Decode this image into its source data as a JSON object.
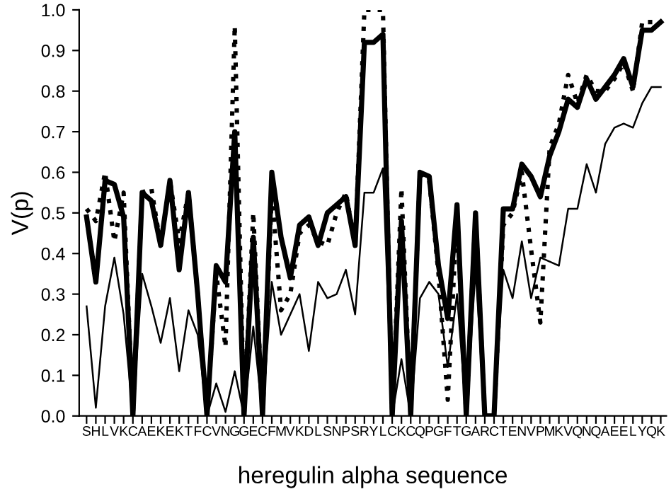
{
  "chart_data": {
    "type": "line",
    "xlabel": "heregulin alpha sequence",
    "ylabel": "V(p)",
    "categories": [
      "S",
      "H",
      "L",
      "V",
      "K",
      "C",
      "A",
      "E",
      "K",
      "E",
      "K",
      "T",
      "F",
      "C",
      "V",
      "N",
      "G",
      "G",
      "E",
      "C",
      "F",
      "M",
      "V",
      "K",
      "D",
      "L",
      "S",
      "N",
      "P",
      "S",
      "R",
      "Y",
      "L",
      "C",
      "K",
      "C",
      "Q",
      "P",
      "G",
      "F",
      "T",
      "G",
      "A",
      "R",
      "C",
      "T",
      "E",
      "N",
      "V",
      "P",
      "M",
      "K",
      "V",
      "Q",
      "N",
      "Q",
      "A",
      "E",
      "E",
      "L",
      "Y",
      "Q",
      "K"
    ],
    "ylim": [
      0,
      1
    ],
    "yticks": [
      {
        "value": 0,
        "label": "0.0"
      },
      {
        "value": 0.1,
        "label": "0.1"
      },
      {
        "value": 0.2,
        "label": "0.2"
      },
      {
        "value": 0.3,
        "label": "0.3"
      },
      {
        "value": 0.4,
        "label": "0.4"
      },
      {
        "value": 0.5,
        "label": "0.5"
      },
      {
        "value": 0.6,
        "label": "0.6"
      },
      {
        "value": 0.7,
        "label": "0.7"
      },
      {
        "value": 0.8,
        "label": "0.8"
      },
      {
        "value": 0.9,
        "label": "0.9"
      },
      {
        "value": 1,
        "label": "1.0"
      }
    ],
    "grid": false,
    "legend": false,
    "marker": "none",
    "series": [
      {
        "color": "#000000",
        "line_style": "solid",
        "values": [
          0.49,
          0.33,
          0.58,
          0.57,
          0.49,
          0,
          0.55,
          0.53,
          0.42,
          0.58,
          0.36,
          0.55,
          0.3,
          0,
          0.37,
          0.33,
          0.7,
          0,
          0.44,
          0,
          0.6,
          0.44,
          0.34,
          0.47,
          0.49,
          0.42,
          0.5,
          0.52,
          0.54,
          0.42,
          0.92,
          0.92,
          0.94,
          0,
          0.48,
          0,
          0.6,
          0.59,
          0.37,
          0.24,
          0.52,
          0,
          0.5,
          0,
          0,
          0.51,
          0.51,
          0.62,
          0.59,
          0.54,
          0.64,
          0.7,
          0.78,
          0.76,
          0.83,
          0.78,
          0.81,
          0.84,
          0.88,
          0.81,
          0.95,
          0.95,
          0.97
        ]
      },
      {
        "color": "#000000",
        "line_style": "dotted",
        "values": [
          0.51,
          0.48,
          0.6,
          0.43,
          0.55,
          0,
          0.55,
          0.56,
          0.42,
          0.58,
          0.43,
          0.55,
          0.3,
          0,
          0.35,
          0.17,
          0.96,
          0,
          0.5,
          0,
          0.55,
          0.26,
          0.3,
          0.45,
          0.47,
          0.43,
          0.42,
          0.5,
          0.55,
          0.42,
          1,
          1,
          1,
          0,
          0.56,
          0,
          0.6,
          0.58,
          0.35,
          0.04,
          0.5,
          0,
          0.5,
          0,
          0,
          0.47,
          0.5,
          0.6,
          0.41,
          0.23,
          0.66,
          0.72,
          0.84,
          0.77,
          0.84,
          0.8,
          0.8,
          0.83,
          0.87,
          0.8,
          0.97,
          0.97,
          0.97
        ]
      },
      {
        "color": "#000000",
        "line_style": "solid",
        "values": [
          0.27,
          0.02,
          0.27,
          0.39,
          0.25,
          0,
          0.35,
          0.27,
          0.18,
          0.29,
          0.11,
          0.26,
          0.2,
          0,
          0.08,
          0.01,
          0.11,
          0,
          0.22,
          0,
          0.33,
          0.2,
          0.25,
          0.3,
          0.16,
          0.33,
          0.29,
          0.3,
          0.36,
          0.25,
          0.55,
          0.55,
          0.61,
          0,
          0.14,
          0,
          0.29,
          0.33,
          0.3,
          0.12,
          0.3,
          0,
          0.36,
          0,
          0,
          0.36,
          0.29,
          0.43,
          0.29,
          0.39,
          0.38,
          0.37,
          0.51,
          0.51,
          0.62,
          0.55,
          0.67,
          0.71,
          0.72,
          0.71,
          0.77,
          0.81,
          0.81
        ]
      }
    ]
  }
}
